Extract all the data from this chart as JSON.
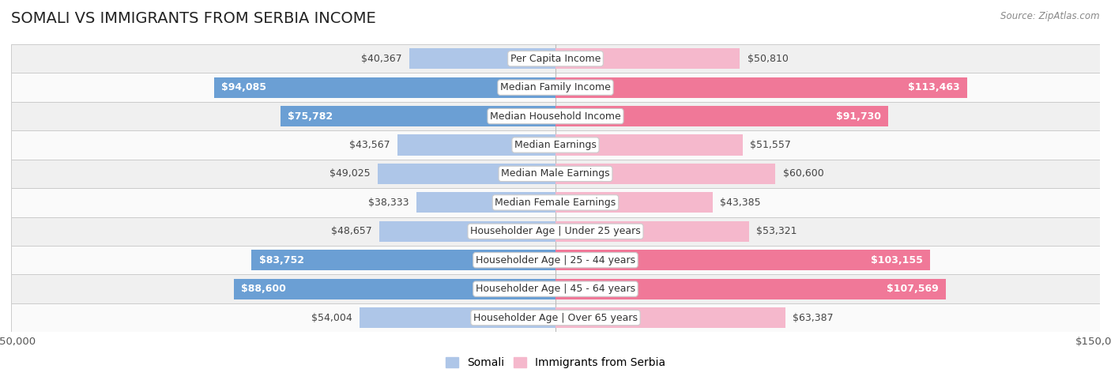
{
  "title": "SOMALI VS IMMIGRANTS FROM SERBIA INCOME",
  "source": "Source: ZipAtlas.com",
  "categories": [
    "Per Capita Income",
    "Median Family Income",
    "Median Household Income",
    "Median Earnings",
    "Median Male Earnings",
    "Median Female Earnings",
    "Householder Age | Under 25 years",
    "Householder Age | 25 - 44 years",
    "Householder Age | 45 - 64 years",
    "Householder Age | Over 65 years"
  ],
  "somali_values": [
    40367,
    94085,
    75782,
    43567,
    49025,
    38333,
    48657,
    83752,
    88600,
    54004
  ],
  "serbia_values": [
    50810,
    113463,
    91730,
    51557,
    60600,
    43385,
    53321,
    103155,
    107569,
    63387
  ],
  "somali_labels": [
    "$40,367",
    "$94,085",
    "$75,782",
    "$43,567",
    "$49,025",
    "$38,333",
    "$48,657",
    "$83,752",
    "$88,600",
    "$54,004"
  ],
  "serbia_labels": [
    "$50,810",
    "$113,463",
    "$91,730",
    "$51,557",
    "$60,600",
    "$43,385",
    "$53,321",
    "$103,155",
    "$107,569",
    "$63,387"
  ],
  "somali_color_light": "#aec6e8",
  "somali_color_dark": "#6b9fd4",
  "serbia_color_light": "#f5b8cc",
  "serbia_color_dark": "#f07898",
  "axis_limit": 150000,
  "bar_height": 0.72,
  "background_color": "#ffffff",
  "row_colors": [
    "#f0f0f0",
    "#fafafa"
  ],
  "row_border_color": "#cccccc",
  "label_fontsize": 9,
  "category_fontsize": 9,
  "title_fontsize": 14,
  "legend_fontsize": 10,
  "large_threshold": 70000
}
